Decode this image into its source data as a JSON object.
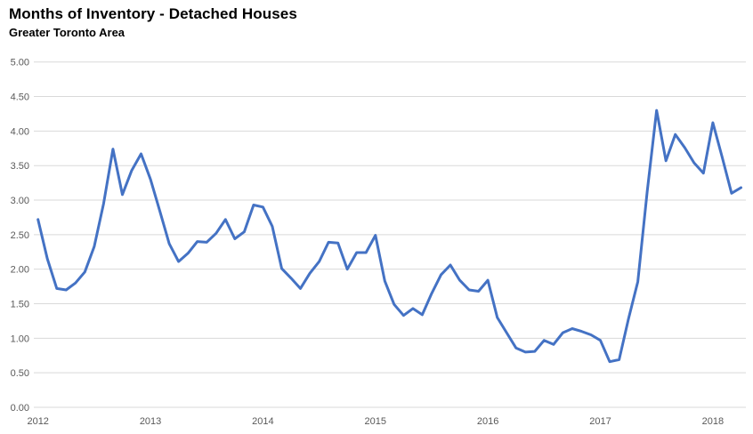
{
  "chart_data": {
    "type": "line",
    "title": "Months of Inventory - Detached Houses",
    "subtitle": "Greater Toronto Area",
    "xlabel": "",
    "ylabel": "",
    "ylim": [
      0.0,
      5.0
    ],
    "y_tick_step": 0.5,
    "y_tick_labels": [
      "0.00",
      "0.50",
      "1.00",
      "1.50",
      "2.00",
      "2.50",
      "3.00",
      "3.50",
      "4.00",
      "4.50",
      "5.00"
    ],
    "x_tick_labels": [
      "2012",
      "2013",
      "2014",
      "2015",
      "2016",
      "2017",
      "2018"
    ],
    "grid": true,
    "legend": "none",
    "colors": {
      "line": "#4472C4",
      "gridline": "#D9D9D9",
      "axis_label": "#595959",
      "title": "#000000",
      "background": "#FFFFFF"
    },
    "series": [
      {
        "name": "Months of Inventory",
        "months": [
          "2012-01",
          "2012-02",
          "2012-03",
          "2012-04",
          "2012-05",
          "2012-06",
          "2012-07",
          "2012-08",
          "2012-09",
          "2012-10",
          "2012-11",
          "2012-12",
          "2013-01",
          "2013-02",
          "2013-03",
          "2013-04",
          "2013-05",
          "2013-06",
          "2013-07",
          "2013-08",
          "2013-09",
          "2013-10",
          "2013-11",
          "2013-12",
          "2014-01",
          "2014-02",
          "2014-03",
          "2014-04",
          "2014-05",
          "2014-06",
          "2014-07",
          "2014-08",
          "2014-09",
          "2014-10",
          "2014-11",
          "2014-12",
          "2015-01",
          "2015-02",
          "2015-03",
          "2015-04",
          "2015-05",
          "2015-06",
          "2015-07",
          "2015-08",
          "2015-09",
          "2015-10",
          "2015-11",
          "2015-12",
          "2016-01",
          "2016-02",
          "2016-03",
          "2016-04",
          "2016-05",
          "2016-06",
          "2016-07",
          "2016-08",
          "2016-09",
          "2016-10",
          "2016-11",
          "2016-12",
          "2017-01",
          "2017-02",
          "2017-03",
          "2017-04",
          "2017-05",
          "2017-06",
          "2017-07",
          "2017-08",
          "2017-09",
          "2017-10",
          "2017-11",
          "2017-12",
          "2018-01",
          "2018-02",
          "2018-03",
          "2018-04"
        ],
        "values": [
          2.72,
          2.15,
          1.72,
          1.7,
          1.8,
          1.96,
          2.33,
          2.95,
          3.74,
          3.08,
          3.43,
          3.67,
          3.3,
          2.84,
          2.37,
          2.11,
          2.23,
          2.4,
          2.39,
          2.52,
          2.72,
          2.44,
          2.54,
          2.93,
          2.9,
          2.62,
          2.01,
          1.87,
          1.72,
          1.94,
          2.11,
          2.39,
          2.38,
          2.0,
          2.24,
          2.24,
          2.49,
          1.83,
          1.49,
          1.33,
          1.43,
          1.34,
          1.65,
          1.92,
          2.06,
          1.84,
          1.7,
          1.68,
          1.84,
          1.3,
          1.08,
          0.86,
          0.8,
          0.81,
          0.97,
          0.91,
          1.08,
          1.14,
          1.1,
          1.05,
          0.97,
          0.66,
          0.69,
          1.28,
          1.82,
          3.12,
          4.3,
          3.57,
          3.95,
          3.76,
          3.54,
          3.39,
          4.12,
          3.62,
          3.1,
          3.18
        ]
      }
    ]
  }
}
